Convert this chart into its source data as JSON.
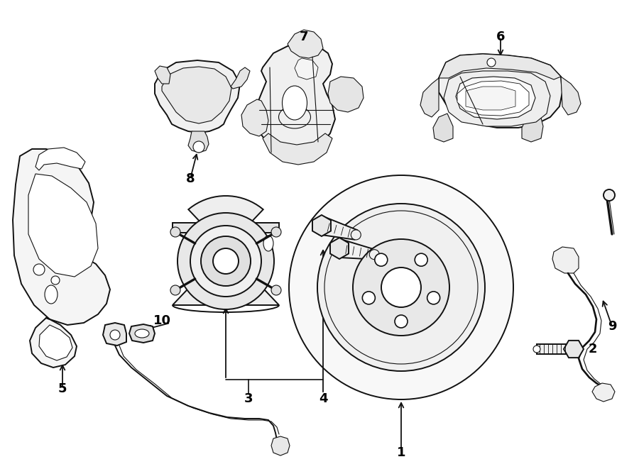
{
  "bg_color": "#ffffff",
  "lc": "#111111",
  "lw": 1.4,
  "tlw": 0.8,
  "fig_width": 9.0,
  "fig_height": 6.61,
  "dpi": 100
}
